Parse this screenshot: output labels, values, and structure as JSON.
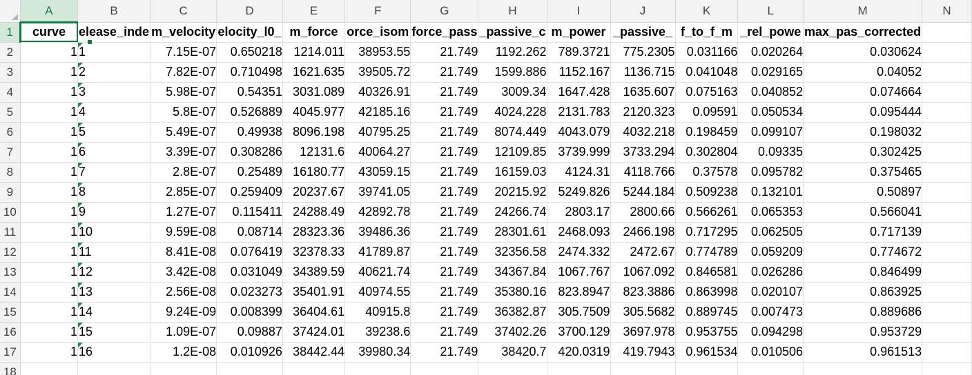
{
  "column_headers": [
    "A",
    "B",
    "C",
    "D",
    "E",
    "F",
    "G",
    "H",
    "I",
    "J",
    "K",
    "L",
    "M",
    "N"
  ],
  "row_numbers": [
    "1",
    "2",
    "3",
    "4",
    "5",
    "6",
    "7",
    "8",
    "9",
    "10",
    "11",
    "12",
    "13",
    "14",
    "15",
    "16",
    "17",
    "18"
  ],
  "header_row": [
    "curve",
    "elease_inde",
    "m_velocity",
    "elocity_l0_",
    "m_force",
    "orce_isom",
    "force_pass",
    "_passive_c",
    "m_power",
    "_passive_",
    "f_to_f_m",
    "_rel_powe",
    "max_pas_corrected"
  ],
  "rows": [
    [
      "1",
      "1",
      "7.15E-07",
      "0.650218",
      "1214.011",
      "38953.55",
      "21.749",
      "1192.262",
      "789.3721",
      "775.2305",
      "0.031166",
      "0.020264",
      "0.030624"
    ],
    [
      "1",
      "2",
      "7.82E-07",
      "0.710498",
      "1621.635",
      "39505.72",
      "21.749",
      "1599.886",
      "1152.167",
      "1136.715",
      "0.041048",
      "0.029165",
      "0.04052"
    ],
    [
      "1",
      "3",
      "5.98E-07",
      "0.54351",
      "3031.089",
      "40326.91",
      "21.749",
      "3009.34",
      "1647.428",
      "1635.607",
      "0.075163",
      "0.040852",
      "0.074664"
    ],
    [
      "1",
      "4",
      "5.8E-07",
      "0.526889",
      "4045.977",
      "42185.16",
      "21.749",
      "4024.228",
      "2131.783",
      "2120.323",
      "0.09591",
      "0.050534",
      "0.095444"
    ],
    [
      "1",
      "5",
      "5.49E-07",
      "0.49938",
      "8096.198",
      "40795.25",
      "21.749",
      "8074.449",
      "4043.079",
      "4032.218",
      "0.198459",
      "0.099107",
      "0.198032"
    ],
    [
      "1",
      "6",
      "3.39E-07",
      "0.308286",
      "12131.6",
      "40064.27",
      "21.749",
      "12109.85",
      "3739.999",
      "3733.294",
      "0.302804",
      "0.09335",
      "0.302425"
    ],
    [
      "1",
      "7",
      "2.8E-07",
      "0.25489",
      "16180.77",
      "43059.15",
      "21.749",
      "16159.03",
      "4124.31",
      "4118.766",
      "0.37578",
      "0.095782",
      "0.375465"
    ],
    [
      "1",
      "8",
      "2.85E-07",
      "0.259409",
      "20237.67",
      "39741.05",
      "21.749",
      "20215.92",
      "5249.826",
      "5244.184",
      "0.509238",
      "0.132101",
      "0.50897"
    ],
    [
      "1",
      "9",
      "1.27E-07",
      "0.115411",
      "24288.49",
      "42892.78",
      "21.749",
      "24266.74",
      "2803.17",
      "2800.66",
      "0.566261",
      "0.065353",
      "0.566041"
    ],
    [
      "1",
      "10",
      "9.59E-08",
      "0.08714",
      "28323.36",
      "39486.36",
      "21.749",
      "28301.61",
      "2468.093",
      "2466.198",
      "0.717295",
      "0.062505",
      "0.717139"
    ],
    [
      "1",
      "11",
      "8.41E-08",
      "0.076419",
      "32378.33",
      "41789.87",
      "21.749",
      "32356.58",
      "2474.332",
      "2472.67",
      "0.774789",
      "0.059209",
      "0.774672"
    ],
    [
      "1",
      "12",
      "3.42E-08",
      "0.031049",
      "34389.59",
      "40621.74",
      "21.749",
      "34367.84",
      "1067.767",
      "1067.092",
      "0.846581",
      "0.026286",
      "0.846499"
    ],
    [
      "1",
      "13",
      "2.56E-08",
      "0.023273",
      "35401.91",
      "40974.55",
      "21.749",
      "35380.16",
      "823.8947",
      "823.3886",
      "0.863998",
      "0.020107",
      "0.863925"
    ],
    [
      "1",
      "14",
      "9.24E-09",
      "0.008399",
      "36404.61",
      "40915.8",
      "21.749",
      "36382.87",
      "305.7509",
      "305.5682",
      "0.889745",
      "0.007473",
      "0.889686"
    ],
    [
      "1",
      "15",
      "1.09E-07",
      "0.09887",
      "37424.01",
      "39238.6",
      "21.749",
      "37402.26",
      "3700.129",
      "3697.978",
      "0.953755",
      "0.094298",
      "0.953729"
    ],
    [
      "1",
      "16",
      "1.2E-08",
      "0.010926",
      "38442.44",
      "39980.34",
      "21.749",
      "38420.7",
      "420.0319",
      "419.7943",
      "0.961534",
      "0.010506",
      "0.961513"
    ]
  ],
  "active_cell": "A1",
  "colors": {
    "accent": "#107c41",
    "header_bg": "#f3f3f3",
    "selected_header_bg": "#d3e8d8",
    "error_flag": "#1e8a4a"
  }
}
